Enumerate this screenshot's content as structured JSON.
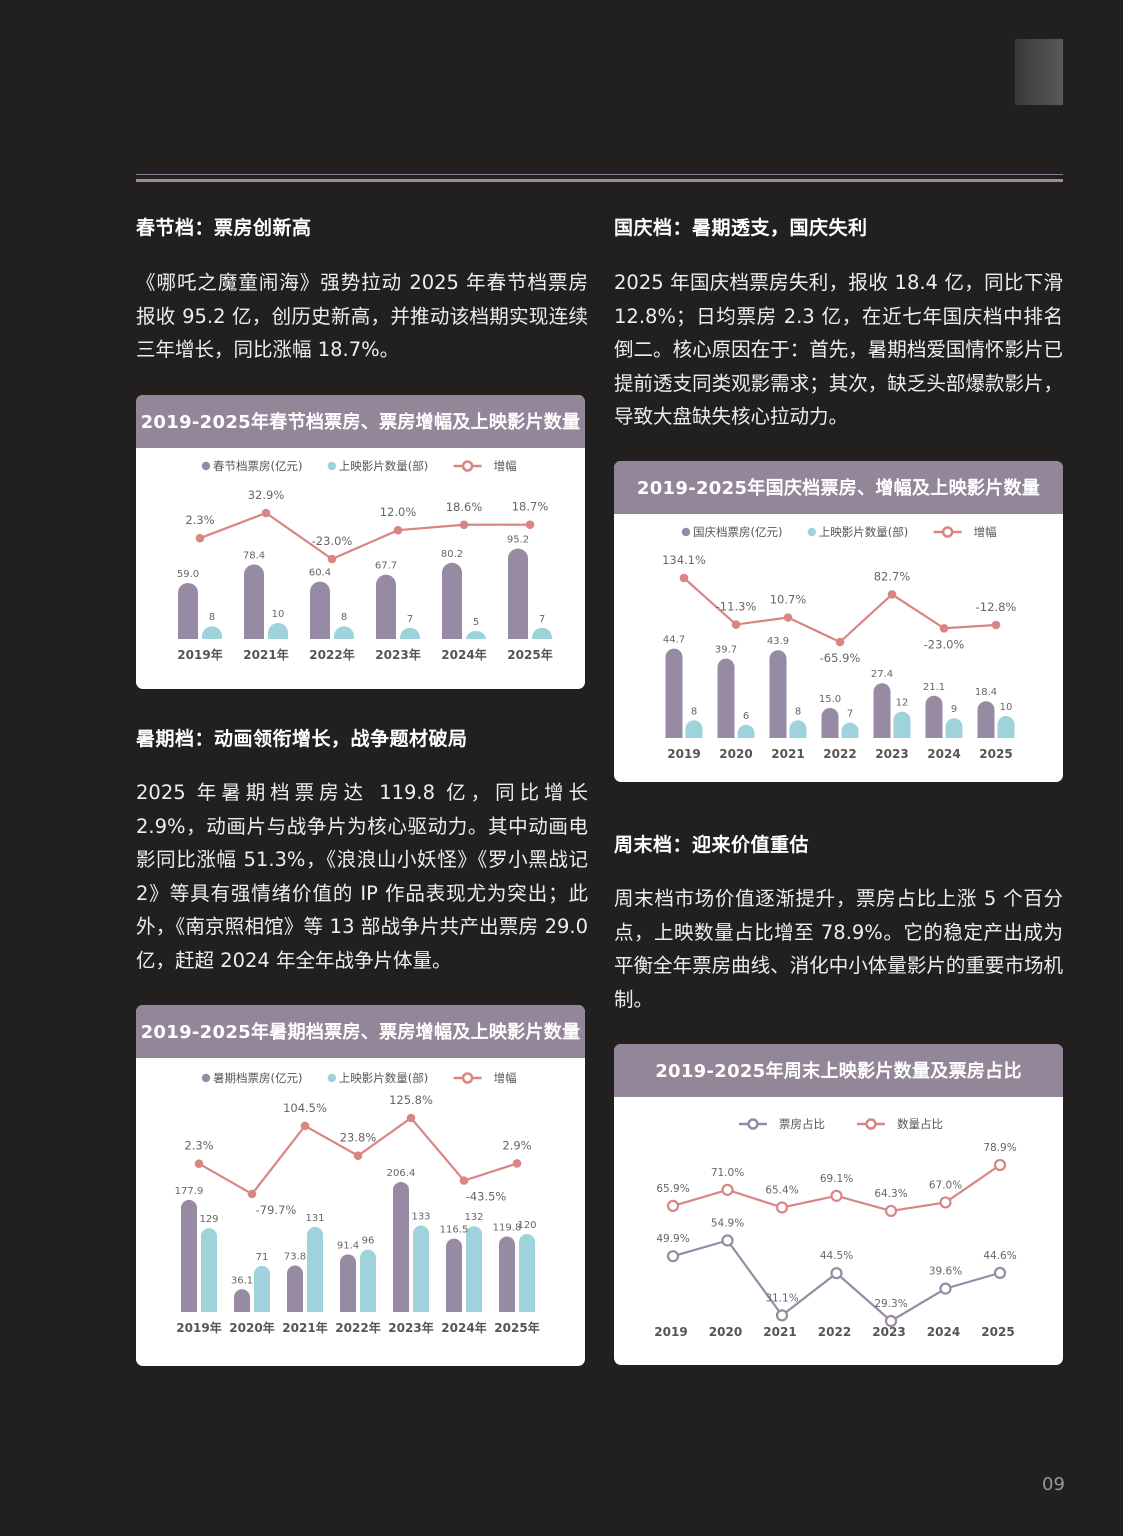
{
  "page": {
    "page_number": "09"
  },
  "sections": {
    "spring": {
      "title": "春节档：票房创新高",
      "body": "《哪吒之魔童闹海》强势拉动 2025 年春节档票房报收 95.2 亿，创历史新高，并推动该档期实现连续三年增长，同比涨幅 18.7%。"
    },
    "summer": {
      "title": "暑期档：动画领衔增长，战争题材破局",
      "body": "2025 年暑期档票房达 119.8 亿，同比增长 2.9%，动画片与战争片为核心驱动力。其中动画电影同比涨幅 51.3%，《浪浪山小妖怪》《罗小黑战记 2》等具有强情绪价值的 IP 作品表现尤为突出；此外，《南京照相馆》等 13 部战争片共产出票房 29.0 亿，赶超 2024 年全年战争片体量。"
    },
    "national": {
      "title": "国庆档：暑期透支，国庆失利",
      "body": "2025 年国庆档票房失利，报收 18.4 亿，同比下滑 12.8%；日均票房 2.3 亿，在近七年国庆档中排名倒二。核心原因在于：首先，暑期档爱国情怀影片已提前透支同类观影需求；其次，缺乏头部爆款影片，导致大盘缺失核心拉动力。"
    },
    "weekend": {
      "title": "周末档：迎来价值重估",
      "body": "周末档市场价值逐渐提升，票房占比上涨 5 个百分点，上映数量占比增至 78.9%。它的稳定产出成为平衡全年票房曲线、消化中小体量影片的重要市场机制。"
    }
  },
  "colors": {
    "bar_primary": "#978aa3",
    "bar_secondary": "#9fd3dc",
    "line_growth": "#d98583",
    "line_purple": "#978aa3",
    "header": "#938699"
  },
  "chart_data": [
    {
      "id": "spring",
      "type": "bar+line",
      "title": "2019-2025年春节档票房、票房增幅及上映影片数量",
      "categories": [
        "2019年",
        "2021年",
        "2022年",
        "2023年",
        "2024年",
        "2025年"
      ],
      "legend": [
        "春节档票房(亿元)",
        "上映影片数量(部)",
        "增幅"
      ],
      "series": [
        {
          "name": "春节档票房(亿元)",
          "type": "bar",
          "values": [
            59.0,
            78.4,
            60.4,
            67.7,
            80.2,
            95.2
          ],
          "labels": [
            "59.0",
            "78.4",
            "60.4",
            "67.7",
            "80.2",
            "95.2"
          ]
        },
        {
          "name": "上映影片数量(部)",
          "type": "bar",
          "values": [
            8,
            10,
            8,
            7,
            5,
            7
          ],
          "labels": [
            "8",
            "10",
            "8",
            "7",
            "5",
            "7"
          ]
        },
        {
          "name": "增幅",
          "type": "line",
          "values": [
            2.3,
            32.9,
            -23.0,
            12.0,
            18.6,
            18.7
          ],
          "labels": [
            "2.3%",
            "32.9%",
            "-23.0%",
            "12.0%",
            "18.6%",
            "18.7%"
          ]
        }
      ]
    },
    {
      "id": "national",
      "type": "bar+line",
      "title": "2019-2025年国庆档票房、增幅及上映影片数量",
      "categories": [
        "2019",
        "2020",
        "2021",
        "2022",
        "2023",
        "2024",
        "2025"
      ],
      "legend": [
        "国庆档票房(亿元)",
        "上映影片数量(部)",
        "增幅"
      ],
      "series": [
        {
          "name": "国庆档票房(亿元)",
          "type": "bar",
          "values": [
            44.7,
            39.7,
            43.9,
            15.0,
            27.4,
            21.1,
            18.4
          ],
          "labels": [
            "44.7",
            "39.7",
            "43.9",
            "15.0",
            "27.4",
            "21.1",
            "18.4"
          ]
        },
        {
          "name": "上映影片数量(部)",
          "type": "bar",
          "values": [
            8,
            6,
            8,
            7,
            12,
            9,
            10
          ],
          "labels": [
            "8",
            "6",
            "8",
            "7",
            "12",
            "9",
            "10"
          ]
        },
        {
          "name": "增幅",
          "type": "line",
          "values": [
            134.1,
            -11.3,
            10.7,
            -65.9,
            82.7,
            -23.0,
            -12.8
          ],
          "labels": [
            "134.1%",
            "-11.3%",
            "10.7%",
            "-65.9%",
            "82.7%",
            "-23.0%",
            "-12.8%"
          ]
        }
      ]
    },
    {
      "id": "summer",
      "type": "bar+line",
      "title": "2019-2025年暑期档票房、票房增幅及上映影片数量",
      "categories": [
        "2019年",
        "2020年",
        "2021年",
        "2022年",
        "2023年",
        "2024年",
        "2025年"
      ],
      "legend": [
        "暑期档票房(亿元)",
        "上映影片数量(部)",
        "增幅"
      ],
      "series": [
        {
          "name": "暑期档票房(亿元)",
          "type": "bar",
          "values": [
            177.9,
            36.1,
            73.8,
            91.4,
            206.4,
            116.5,
            119.8
          ],
          "labels": [
            "177.9",
            "36.1",
            "73.8",
            "91.4",
            "206.4",
            "116.5",
            "119.8"
          ]
        },
        {
          "name": "上映影片数量(部)",
          "type": "bar",
          "values": [
            129,
            71,
            131,
            96,
            133,
            132,
            120
          ],
          "labels": [
            "129",
            "71",
            "131",
            "96",
            "133",
            "132",
            "120"
          ]
        },
        {
          "name": "增幅",
          "type": "line",
          "values": [
            2.3,
            -79.7,
            104.5,
            23.8,
            125.8,
            -43.5,
            2.9
          ],
          "labels": [
            "2.3%",
            "-79.7%",
            "104.5%",
            "23.8%",
            "125.8%",
            "-43.5%",
            "2.9%"
          ]
        }
      ]
    },
    {
      "id": "weekend",
      "type": "line",
      "title": "2019-2025年周末上映影片数量及票房占比",
      "categories": [
        "2019",
        "2020",
        "2021",
        "2022",
        "2023",
        "2024",
        "2025"
      ],
      "legend": [
        "票房占比",
        "数量占比"
      ],
      "series": [
        {
          "name": "票房占比",
          "type": "line",
          "values": [
            49.9,
            54.9,
            31.1,
            44.5,
            29.3,
            39.6,
            44.6
          ],
          "labels": [
            "49.9%",
            "54.9%",
            "31.1%",
            "44.5%",
            "29.3%",
            "39.6%",
            "44.6%"
          ]
        },
        {
          "name": "数量占比",
          "type": "line",
          "values": [
            65.9,
            71.0,
            65.4,
            69.1,
            64.3,
            67.0,
            78.9
          ],
          "labels": [
            "65.9%",
            "71.0%",
            "65.4%",
            "69.1%",
            "64.3%",
            "67.0%",
            "78.9%"
          ]
        }
      ]
    }
  ]
}
